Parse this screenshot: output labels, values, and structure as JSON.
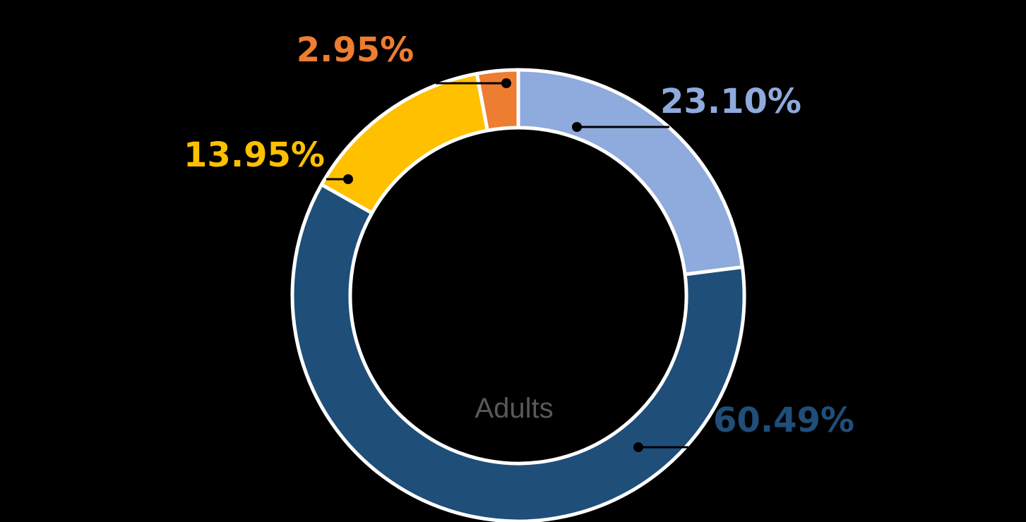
{
  "chart_data": {
    "type": "pie",
    "variant": "donut",
    "center_label": "Adults",
    "categories": [
      "",
      "",
      "",
      ""
    ],
    "values": [
      23.1,
      60.49,
      13.95,
      2.95
    ],
    "value_labels": [
      "23.10%",
      "60.49%",
      "13.95%",
      "2.95%"
    ],
    "colors": [
      "#8faadc",
      "#1f4e79",
      "#ffc000",
      "#ed7d31"
    ],
    "start_angle_deg": 0,
    "direction": "clockwise",
    "slice_border_color": "#ffffff",
    "legend": "none"
  }
}
